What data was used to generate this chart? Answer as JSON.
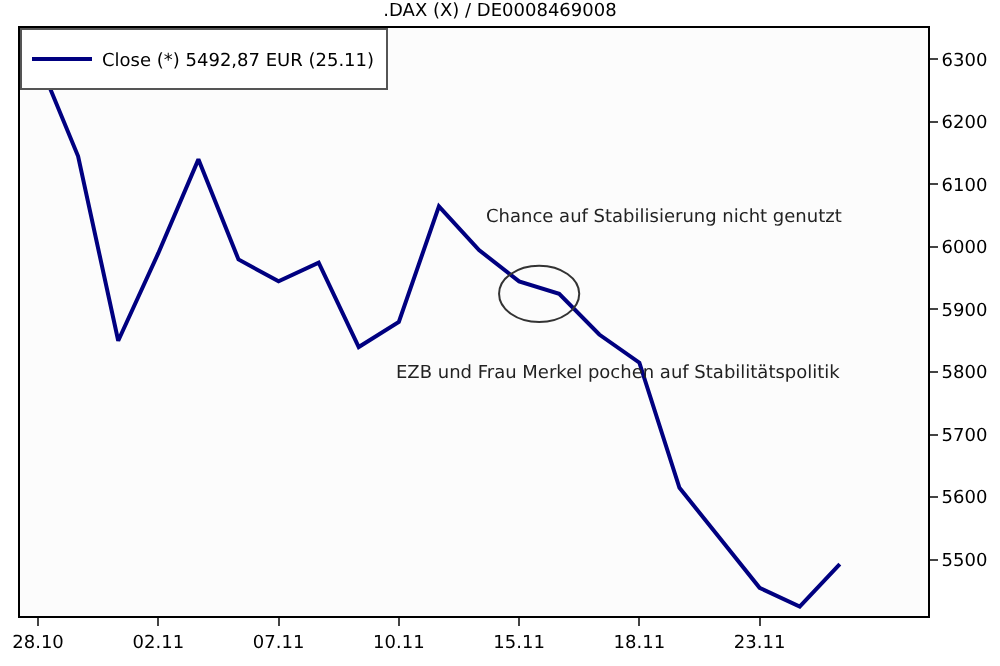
{
  "chart_data": {
    "type": "line",
    "title": ".DAX (X) / DE0008469008",
    "categories": [
      "28.10",
      null,
      null,
      "02.11",
      null,
      null,
      "07.11",
      null,
      null,
      "10.11",
      null,
      null,
      "15.11",
      null,
      null,
      "18.11",
      null,
      null,
      "23.11",
      null,
      null
    ],
    "series": [
      {
        "name": "Close (*) 5492,87 EUR (25.11)",
        "color": "#000080",
        "values": [
          6300,
          6145,
          5850,
          5990,
          6140,
          5980,
          5945,
          5975,
          5840,
          5880,
          6065,
          5995,
          5945,
          5925,
          5860,
          5815,
          5615,
          5535,
          5455,
          5425,
          5493
        ]
      }
    ],
    "ylim": [
      5410,
      6350
    ],
    "yticks": [
      5500,
      5600,
      5700,
      5800,
      5900,
      6000,
      6100,
      6200,
      6300
    ],
    "annotations": [
      "Chance auf Stabilisierung nicht genutzt",
      "EZB und Frau Merkel pochen auf Stabilitätspolitik"
    ],
    "legend": "top left",
    "marker": "none",
    "line_style": "solid"
  }
}
